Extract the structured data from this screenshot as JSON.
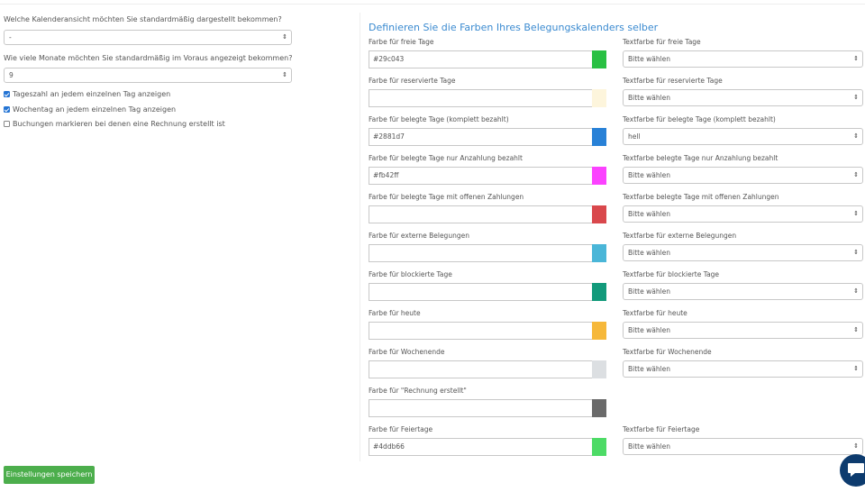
{
  "settings": {
    "view_question": "Welche Kalenderansicht möchten Sie standardmäßig dargestellt bekommen?",
    "view_value": "-",
    "months_question": "Wie viele Monate möchten Sie standardmäßig im Voraus angezeigt bekommen?",
    "months_value": "9",
    "checkboxes": [
      {
        "label": "Tageszahl an jedem einzelnen Tag anzeigen",
        "checked": true
      },
      {
        "label": "Wochentag an jedem einzelnen Tag anzeigen",
        "checked": true
      },
      {
        "label": "Buchungen markieren bei denen eine Rechnung erstellt ist",
        "checked": false
      }
    ],
    "save_label": "Einstellungen speichern"
  },
  "colors": {
    "title": "Definieren Sie die Farben Ihres Belegungskalenders selber",
    "rows": [
      {
        "label": "Farbe für freie Tage",
        "value": "#29c043",
        "swatch": "#29c043",
        "text_label": "Textfarbe für freie Tage",
        "text_value": "Bitte wählen"
      },
      {
        "label": "Farbe für reservierte Tage",
        "value": "",
        "swatch": "#fdf5dc",
        "text_label": "Textfarbe für reservierte Tage",
        "text_value": "Bitte wählen"
      },
      {
        "label": "Farbe für belegte Tage (komplett bezahlt)",
        "value": "#2881d7",
        "swatch": "#2881d7",
        "text_label": "Textfarbe für belegte Tage (komplett bezahlt)",
        "text_value": "hell"
      },
      {
        "label": "Farbe für belegte Tage nur Anzahlung bezahlt",
        "value": "#fb42ff",
        "swatch": "#fb42ff",
        "text_label": "Textfarbe belegte Tage nur Anzahlung bezahlt",
        "text_value": "Bitte wählen"
      },
      {
        "label": "Farbe für belegte Tage mit offenen Zahlungen",
        "value": "",
        "swatch": "#d9484c",
        "text_label": "Textfarbe belegte Tage mit offenen Zahlungen",
        "text_value": "Bitte wählen"
      },
      {
        "label": "Farbe für externe Belegungen",
        "value": "",
        "swatch": "#4ab6d8",
        "text_label": "Textfarbe für externe Belegungen",
        "text_value": "Bitte wählen"
      },
      {
        "label": "Farbe für blockierte Tage",
        "value": "",
        "swatch": "#129a7b",
        "text_label": "Textfarbe für blockierte Tage",
        "text_value": "Bitte wählen"
      },
      {
        "label": "Farbe für heute",
        "value": "",
        "swatch": "#f6b83a",
        "text_label": "Textfarbe für heute",
        "text_value": "Bitte wählen"
      },
      {
        "label": "Farbe für Wochenende",
        "value": "",
        "swatch": "#dcdfe2",
        "text_label": "Textfarbe für Wochenende",
        "text_value": "Bitte wählen"
      },
      {
        "label": "Farbe für \"Rechnung erstellt\"",
        "value": "",
        "swatch": "#6a6a6a",
        "text_label": "",
        "text_value": ""
      },
      {
        "label": "Farbe für Feiertage",
        "value": "#4ddb66",
        "swatch": "#4ddb66",
        "text_label": "Textfarbe für Feiertage",
        "text_value": "Bitte wählen"
      }
    ]
  },
  "icons": {
    "chat": "chat-bubble-icon",
    "select_arrow": "up-down-arrow-icon"
  }
}
